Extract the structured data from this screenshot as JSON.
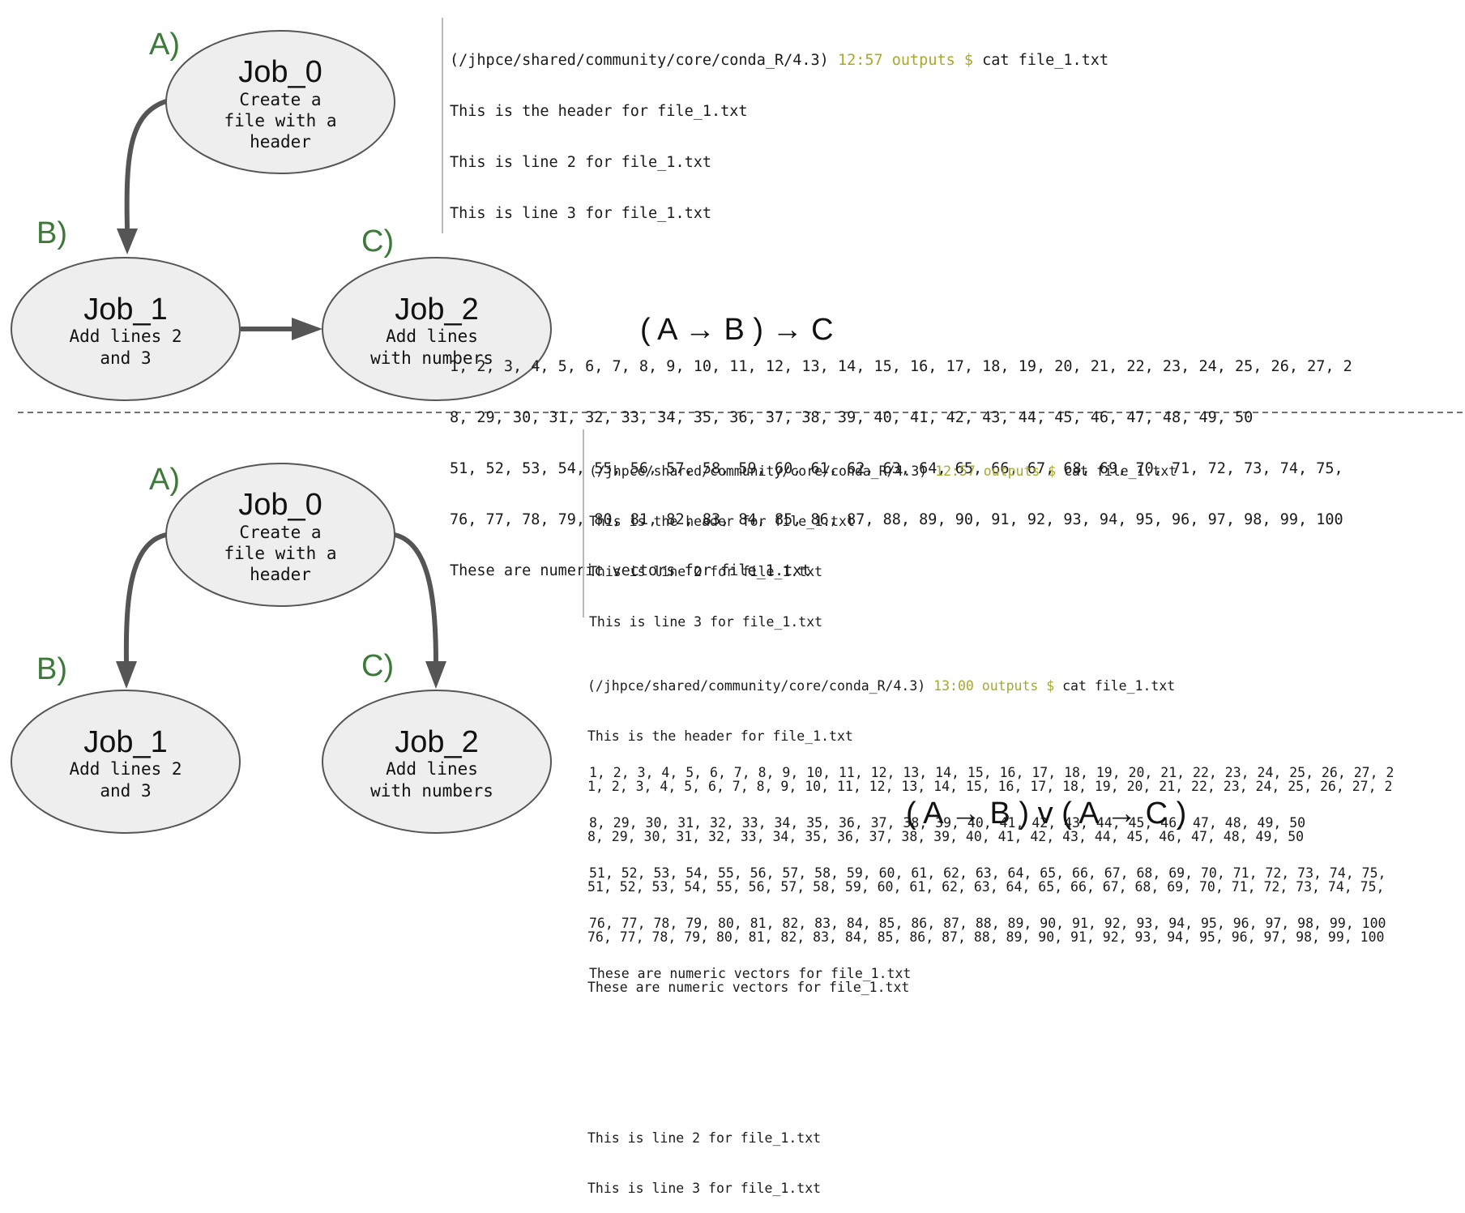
{
  "colors": {
    "step_label": "#3d7a3a",
    "prompt_time": "#a8a829",
    "node_fill": "#eeeeee",
    "node_stroke": "#555555",
    "arrow": "#555555"
  },
  "top": {
    "nodes": [
      {
        "step": "A)",
        "title": "Job_0",
        "desc": [
          "Create a",
          "file with a",
          "header"
        ]
      },
      {
        "step": "B)",
        "title": "Job_1",
        "desc": [
          "Add lines 2",
          "and 3"
        ]
      },
      {
        "step": "C)",
        "title": "Job_2",
        "desc": [
          "Add lines",
          "with numbers"
        ]
      }
    ],
    "formula": "( A → B ) → C",
    "terminal": {
      "prompt_path": "(/jhpce/shared/community/core/conda_R/4.3)",
      "prompt_time": "12:57 outputs $",
      "command": " cat file_1.txt",
      "lines": [
        "This is the header for file_1.txt",
        "This is line 2 for file_1.txt",
        "This is line 3 for file_1.txt",
        "",
        "",
        "1, 2, 3, 4, 5, 6, 7, 8, 9, 10, 11, 12, 13, 14, 15, 16, 17, 18, 19, 20, 21, 22, 23, 24, 25, 26, 27, 2",
        "8, 29, 30, 31, 32, 33, 34, 35, 36, 37, 38, 39, 40, 41, 42, 43, 44, 45, 46, 47, 48, 49, 50",
        "51, 52, 53, 54, 55, 56, 57, 58, 59, 60, 61, 62, 63, 64, 65, 66, 67, 68, 69, 70, 71, 72, 73, 74, 75,",
        "76, 77, 78, 79, 80, 81, 82, 83, 84, 85, 86, 87, 88, 89, 90, 91, 92, 93, 94, 95, 96, 97, 98, 99, 100",
        "These are numeric vectors for file_1.txt"
      ]
    }
  },
  "bottom": {
    "nodes": [
      {
        "step": "A)",
        "title": "Job_0",
        "desc": [
          "Create a",
          "file with a",
          "header"
        ]
      },
      {
        "step": "B)",
        "title": "Job_1",
        "desc": [
          "Add lines 2",
          "and 3"
        ]
      },
      {
        "step": "C)",
        "title": "Job_2",
        "desc": [
          "Add lines",
          "with numbers"
        ]
      }
    ],
    "formula": "( A → B ) v ( A → C )",
    "terminal_1": {
      "prompt_path": "(/jhpce/shared/community/core/conda_R/4.3)",
      "prompt_time": "12:57 outputs $",
      "command": " cat file_1.txt",
      "lines": [
        "This is the header for file_1.txt",
        "This is line 2 for file_1.txt",
        "This is line 3 for file_1.txt",
        "",
        "",
        "1, 2, 3, 4, 5, 6, 7, 8, 9, 10, 11, 12, 13, 14, 15, 16, 17, 18, 19, 20, 21, 22, 23, 24, 25, 26, 27, 2",
        "8, 29, 30, 31, 32, 33, 34, 35, 36, 37, 38, 39, 40, 41, 42, 43, 44, 45, 46, 47, 48, 49, 50",
        "51, 52, 53, 54, 55, 56, 57, 58, 59, 60, 61, 62, 63, 64, 65, 66, 67, 68, 69, 70, 71, 72, 73, 74, 75,",
        "76, 77, 78, 79, 80, 81, 82, 83, 84, 85, 86, 87, 88, 89, 90, 91, 92, 93, 94, 95, 96, 97, 98, 99, 100",
        "These are numeric vectors for file_1.txt"
      ]
    },
    "terminal_2": {
      "prompt_path": "(/jhpce/shared/community/core/conda_R/4.3)",
      "prompt_time": "13:00 outputs $",
      "command": " cat file_1.txt",
      "lines": [
        "This is the header for file_1.txt",
        "1, 2, 3, 4, 5, 6, 7, 8, 9, 10, 11, 12, 13, 14, 15, 16, 17, 18, 19, 20, 21, 22, 23, 24, 25, 26, 27, 2",
        "8, 29, 30, 31, 32, 33, 34, 35, 36, 37, 38, 39, 40, 41, 42, 43, 44, 45, 46, 47, 48, 49, 50",
        "51, 52, 53, 54, 55, 56, 57, 58, 59, 60, 61, 62, 63, 64, 65, 66, 67, 68, 69, 70, 71, 72, 73, 74, 75,",
        "76, 77, 78, 79, 80, 81, 82, 83, 84, 85, 86, 87, 88, 89, 90, 91, 92, 93, 94, 95, 96, 97, 98, 99, 100",
        "These are numeric vectors for file_1.txt",
        "",
        "",
        "This is line 2 for file_1.txt",
        "This is line 3 for file_1.txt"
      ]
    }
  }
}
